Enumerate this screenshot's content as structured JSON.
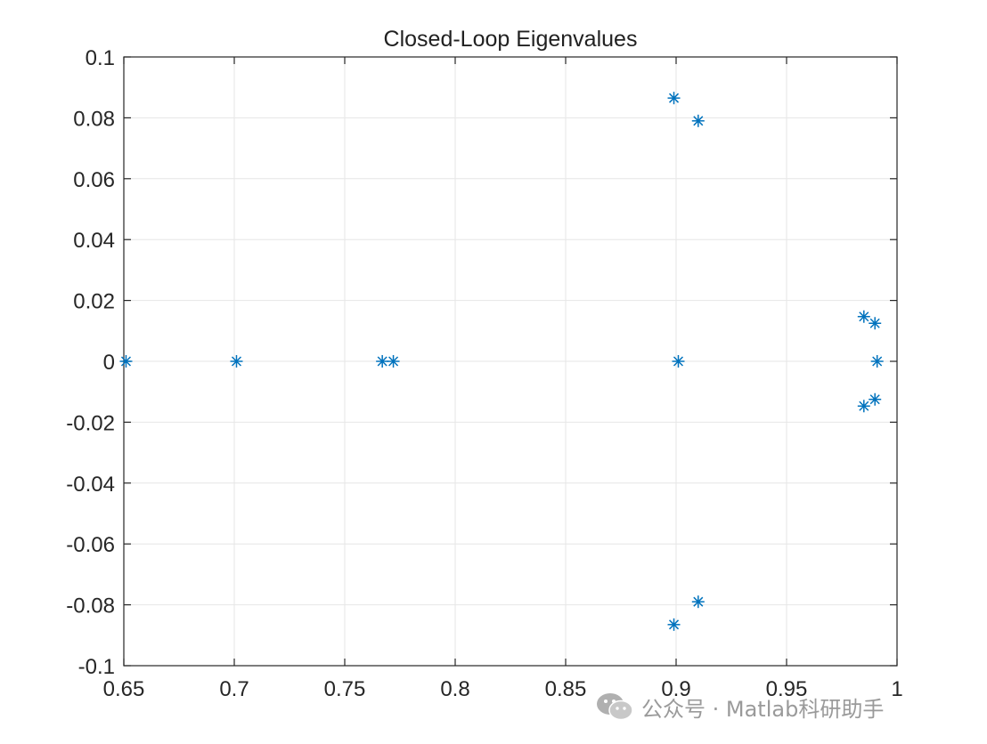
{
  "chart_data": {
    "type": "scatter",
    "title": "Closed-Loop Eigenvalues",
    "xlabel": "",
    "ylabel": "",
    "xlim": [
      0.65,
      1.0
    ],
    "ylim": [
      -0.1,
      0.1
    ],
    "grid": true,
    "marker": "asterisk",
    "color": "#0072bd",
    "x_ticks": [
      "0.65",
      "0.7",
      "0.75",
      "0.8",
      "0.85",
      "0.9",
      "0.95",
      "1"
    ],
    "y_ticks": [
      "0.1",
      "0.08",
      "0.06",
      "0.04",
      "0.02",
      "0",
      "-0.02",
      "-0.04",
      "-0.06",
      "-0.08",
      "-0.1"
    ],
    "points": [
      {
        "x": 0.651,
        "y": 0.0
      },
      {
        "x": 0.701,
        "y": 0.0
      },
      {
        "x": 0.767,
        "y": 0.0
      },
      {
        "x": 0.772,
        "y": 0.0
      },
      {
        "x": 0.899,
        "y": 0.0865
      },
      {
        "x": 0.91,
        "y": 0.079
      },
      {
        "x": 0.901,
        "y": 0.0
      },
      {
        "x": 0.899,
        "y": -0.0865
      },
      {
        "x": 0.91,
        "y": -0.079
      },
      {
        "x": 0.985,
        "y": 0.0147
      },
      {
        "x": 0.99,
        "y": 0.0125
      },
      {
        "x": 0.991,
        "y": 0.0
      },
      {
        "x": 0.985,
        "y": -0.0147
      },
      {
        "x": 0.99,
        "y": -0.0125
      }
    ]
  },
  "watermark": {
    "icon": "wechat-icon",
    "text": "公众号 · Matlab科研助手"
  }
}
